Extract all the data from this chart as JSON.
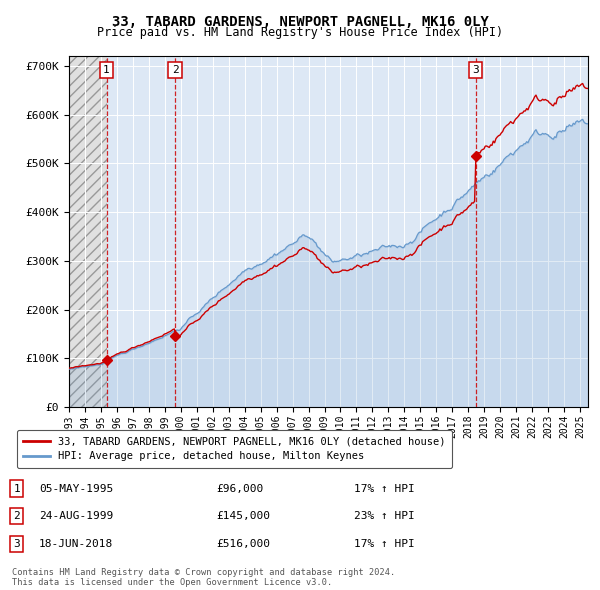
{
  "title": "33, TABARD GARDENS, NEWPORT PAGNELL, MK16 0LY",
  "subtitle": "Price paid vs. HM Land Registry's House Price Index (HPI)",
  "ylim": [
    0,
    720000
  ],
  "xlim_start": 1993.0,
  "xlim_end": 2025.5,
  "yticks": [
    0,
    100000,
    200000,
    300000,
    400000,
    500000,
    600000,
    700000
  ],
  "ytick_labels": [
    "£0",
    "£100K",
    "£200K",
    "£300K",
    "£400K",
    "£500K",
    "£600K",
    "£700K"
  ],
  "xticks": [
    1993,
    1994,
    1995,
    1996,
    1997,
    1998,
    1999,
    2000,
    2001,
    2002,
    2003,
    2004,
    2005,
    2006,
    2007,
    2008,
    2009,
    2010,
    2011,
    2012,
    2013,
    2014,
    2015,
    2016,
    2017,
    2018,
    2019,
    2020,
    2021,
    2022,
    2023,
    2024,
    2025
  ],
  "sales": [
    {
      "num": 1,
      "date_num": 1995.35,
      "price": 96000,
      "label": "1"
    },
    {
      "num": 2,
      "date_num": 1999.65,
      "price": 145000,
      "label": "2"
    },
    {
      "num": 3,
      "date_num": 2018.46,
      "price": 516000,
      "label": "3"
    }
  ],
  "sale_dates": [
    "05-MAY-1995",
    "24-AUG-1999",
    "18-JUN-2018"
  ],
  "sale_prices_str": [
    "£96,000",
    "£145,000",
    "£516,000"
  ],
  "sale_pcts": [
    "17% ↑ HPI",
    "23% ↑ HPI",
    "17% ↑ HPI"
  ],
  "legend_red": "33, TABARD GARDENS, NEWPORT PAGNELL, MK16 0LY (detached house)",
  "legend_blue": "HPI: Average price, detached house, Milton Keynes",
  "footnote": "Contains HM Land Registry data © Crown copyright and database right 2024.\nThis data is licensed under the Open Government Licence v3.0.",
  "line_color_red": "#cc0000",
  "line_color_blue": "#6699cc",
  "bg_plot_color": "#dde8f5",
  "hatch_region_end": 1995.35
}
